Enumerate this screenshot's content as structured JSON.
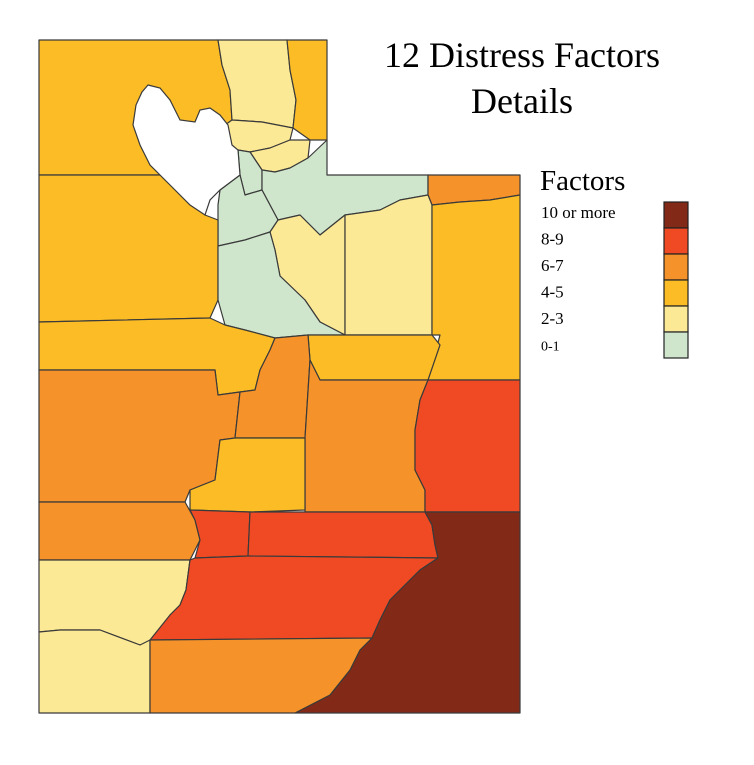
{
  "title_line1": "12 Distress Factors",
  "title_line2": "Details",
  "legend": {
    "title": "Factors",
    "items": [
      {
        "label": "10 or more",
        "color": "#822a17"
      },
      {
        "label": "8-9",
        "color": "#f04a25"
      },
      {
        "label": "6-7",
        "color": "#f5922a"
      },
      {
        "label": "4-5",
        "color": "#fbbc26"
      },
      {
        "label": "2-3",
        "color": "#fce995"
      },
      {
        "label": "0-1",
        "color": "#cfe6cc"
      }
    ]
  },
  "colors": {
    "c10": "#822a17",
    "c8": "#f04a25",
    "c6": "#f5922a",
    "c4": "#fbbc26",
    "c2": "#fce995",
    "c0": "#cfe6cc",
    "lake": "#ffffff",
    "border": "#3a3a3a"
  }
}
